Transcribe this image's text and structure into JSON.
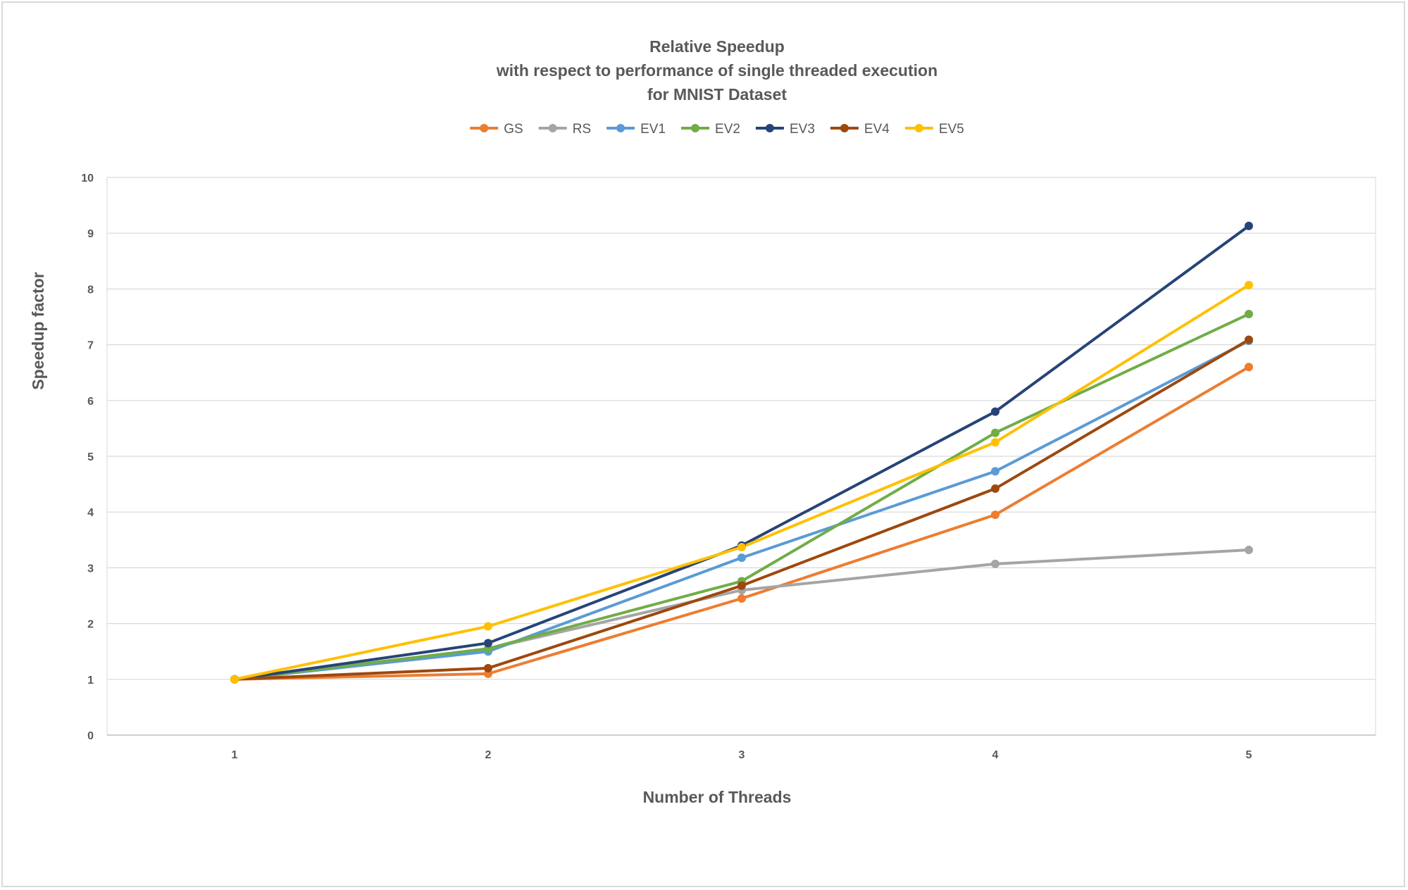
{
  "chart_data": {
    "type": "line",
    "title_lines": [
      "Relative Speedup",
      "with respect to performance of single threaded execution",
      "for MNIST Dataset"
    ],
    "xlabel": "Number of Threads",
    "ylabel": "Speedup factor",
    "x": [
      1,
      2,
      3,
      4,
      5
    ],
    "ylim": [
      0,
      10
    ],
    "yticks": [
      0,
      1,
      2,
      3,
      4,
      5,
      6,
      7,
      8,
      9,
      10
    ],
    "grid": "horizontal",
    "legend_position": "top",
    "series": [
      {
        "name": "GS",
        "color": "#ED7D31",
        "values": [
          1,
          1.1,
          2.45,
          3.95,
          6.6
        ]
      },
      {
        "name": "RS",
        "color": "#A5A5A5",
        "values": [
          1,
          1.55,
          2.6,
          3.07,
          3.32
        ]
      },
      {
        "name": "EV1",
        "color": "#5B9BD5",
        "values": [
          1,
          1.5,
          3.18,
          4.73,
          7.07
        ]
      },
      {
        "name": "EV2",
        "color": "#70AD47",
        "values": [
          1,
          1.55,
          2.76,
          5.42,
          7.55
        ]
      },
      {
        "name": "EV3",
        "color": "#264478",
        "values": [
          1,
          1.65,
          3.4,
          5.8,
          9.13
        ]
      },
      {
        "name": "EV4",
        "color": "#9E480E",
        "values": [
          1,
          1.2,
          2.68,
          4.42,
          7.09
        ]
      },
      {
        "name": "EV5",
        "color": "#FFC000",
        "values": [
          1,
          1.95,
          3.37,
          5.25,
          8.07
        ]
      }
    ]
  }
}
